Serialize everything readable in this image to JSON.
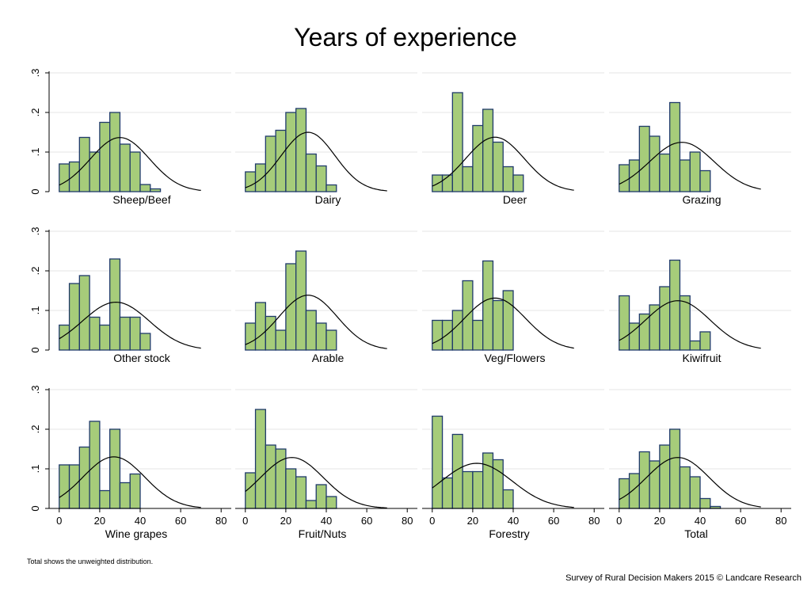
{
  "title": "Years of experience",
  "footnote": "Total shows the unweighted distribution.",
  "credit": "Survey of Rural Decision Makers 2015 © Landcare Research",
  "colors": {
    "bar_fill": "#a6cc7a",
    "bar_edge": "#1f3a6b",
    "curve": "#000000",
    "grid": "#e6e6e6"
  },
  "chart_data": {
    "type": "bar",
    "subtype": "histogram-with-normal-curve",
    "bin_width": 5,
    "bin_starts": [
      0,
      5,
      10,
      15,
      20,
      25,
      30,
      35,
      40,
      45,
      50,
      55,
      60,
      65
    ],
    "xlim": [
      -5,
      85
    ],
    "ylim": [
      0,
      0.3
    ],
    "xticks": [
      0,
      20,
      40,
      60,
      80
    ],
    "xtick_labels": [
      "0",
      "20",
      "40",
      "60",
      "80"
    ],
    "yticks": [
      0,
      0.1,
      0.2,
      0.3
    ],
    "ytick_labels": [
      "0",
      ".1",
      ".2",
      ".3"
    ],
    "grid": true,
    "legend": "none",
    "panels": [
      {
        "label": "Sheep/Beef",
        "values": [
          0.07,
          0.075,
          0.137,
          0.1,
          0.175,
          0.2,
          0.12,
          0.1,
          0.018,
          0.007
        ],
        "mean": 30,
        "sd": 14.6
      },
      {
        "label": "Dairy",
        "values": [
          0.05,
          0.07,
          0.14,
          0.155,
          0.2,
          0.21,
          0.095,
          0.065,
          0.017
        ],
        "mean": 31,
        "sd": 13.3
      },
      {
        "label": "Deer",
        "values": [
          0.042,
          0.042,
          0.25,
          0.063,
          0.167,
          0.208,
          0.125,
          0.063,
          0.042
        ],
        "mean": 31,
        "sd": 14.5
      },
      {
        "label": "Grazing",
        "values": [
          0.068,
          0.08,
          0.165,
          0.14,
          0.095,
          0.225,
          0.08,
          0.1,
          0.053
        ],
        "mean": 31,
        "sd": 16
      },
      {
        "label": "Other stock",
        "values": [
          0.063,
          0.168,
          0.188,
          0.083,
          0.063,
          0.23,
          0.083,
          0.083,
          0.042
        ],
        "mean": 28,
        "sd": 16.5
      },
      {
        "label": "Arable",
        "values": [
          0.068,
          0.12,
          0.085,
          0.05,
          0.218,
          0.25,
          0.1,
          0.068,
          0.05
        ],
        "mean": 31,
        "sd": 14.4
      },
      {
        "label": "Veg/Flowers",
        "values": [
          0.075,
          0.075,
          0.1,
          0.175,
          0.075,
          0.225,
          0.125,
          0.15
        ],
        "mean": 31,
        "sd": 15.2
      },
      {
        "label": "Kiwifruit",
        "values": [
          0.137,
          0.068,
          0.091,
          0.114,
          0.16,
          0.227,
          0.137,
          0.023,
          0.046
        ],
        "mean": 29,
        "sd": 16
      },
      {
        "label": "Wine grapes",
        "values": [
          0.11,
          0.11,
          0.155,
          0.22,
          0.045,
          0.2,
          0.065,
          0.087
        ],
        "mean": 27,
        "sd": 15.3
      },
      {
        "label": "Fruit/Nuts",
        "values": [
          0.09,
          0.25,
          0.16,
          0.15,
          0.1,
          0.08,
          0.02,
          0.06,
          0.03
        ],
        "mean": 23,
        "sd": 15.5
      },
      {
        "label": "Forestry",
        "values": [
          0.233,
          0.077,
          0.187,
          0.093,
          0.093,
          0.14,
          0.123,
          0.047
        ],
        "mean": 22,
        "sd": 17.5
      },
      {
        "label": "Total",
        "values": [
          0.075,
          0.088,
          0.143,
          0.12,
          0.16,
          0.2,
          0.105,
          0.08,
          0.025,
          0.005
        ],
        "mean": 29,
        "sd": 15.5
      }
    ]
  }
}
